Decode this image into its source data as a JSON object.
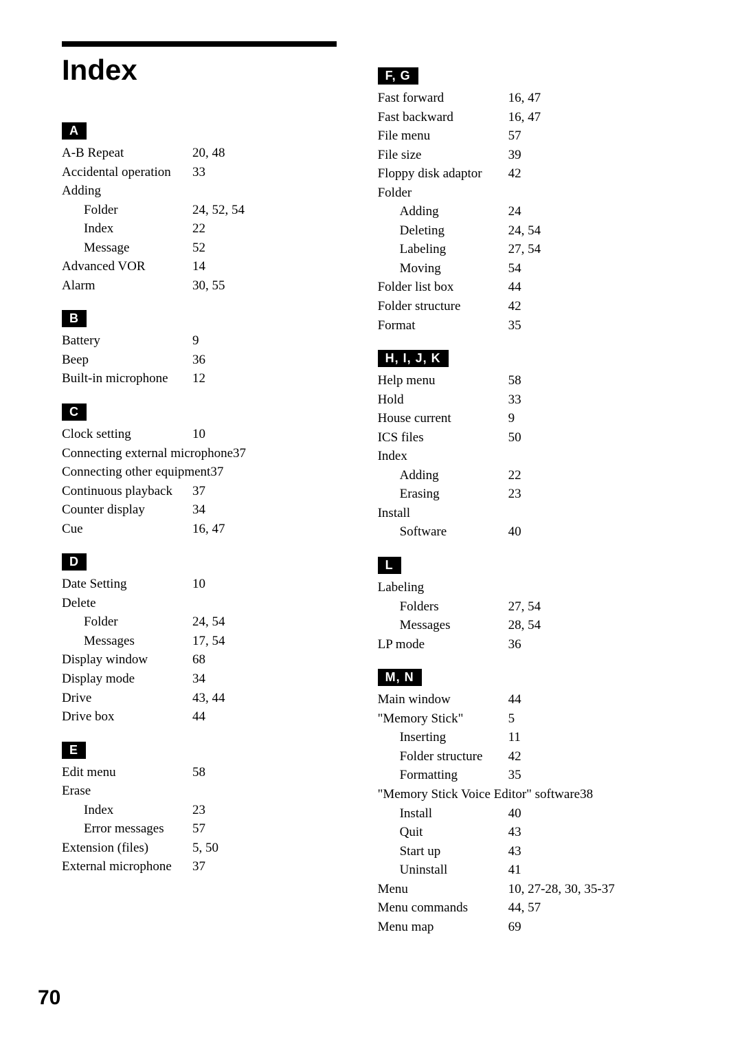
{
  "title": "Index",
  "pageNumber": "70",
  "sections": [
    {
      "letter": "A",
      "column": 0,
      "entries": [
        {
          "term": "A-B Repeat",
          "pages": "20, 48"
        },
        {
          "term": "Accidental operation",
          "pages": "33"
        },
        {
          "term": "Adding",
          "pages": ""
        },
        {
          "term": "Folder",
          "pages": "24, 52, 54",
          "sub": true
        },
        {
          "term": "Index",
          "pages": "22",
          "sub": true
        },
        {
          "term": "Message",
          "pages": "52",
          "sub": true
        },
        {
          "term": "Advanced VOR",
          "pages": "14"
        },
        {
          "term": "Alarm",
          "pages": "30, 55"
        }
      ]
    },
    {
      "letter": "B",
      "column": 0,
      "entries": [
        {
          "term": "Battery",
          "pages": "9"
        },
        {
          "term": "Beep",
          "pages": "36"
        },
        {
          "term": "Built-in microphone",
          "pages": "12"
        }
      ]
    },
    {
      "letter": "C",
      "column": 0,
      "entries": [
        {
          "term": "Clock setting",
          "pages": "10"
        },
        {
          "term": "Connecting external microphone",
          "pages": "37"
        },
        {
          "term": "Connecting other equipment",
          "pages": "37"
        },
        {
          "term": "Continuous playback",
          "pages": "37"
        },
        {
          "term": "Counter display",
          "pages": "34"
        },
        {
          "term": "Cue",
          "pages": "16, 47"
        }
      ]
    },
    {
      "letter": "D",
      "column": 0,
      "entries": [
        {
          "term": "Date Setting",
          "pages": "10"
        },
        {
          "term": "Delete",
          "pages": ""
        },
        {
          "term": "Folder",
          "pages": "24, 54",
          "sub": true
        },
        {
          "term": "Messages",
          "pages": "17, 54",
          "sub": true
        },
        {
          "term": "Display window",
          "pages": "68"
        },
        {
          "term": "Display mode",
          "pages": "34"
        },
        {
          "term": "Drive",
          "pages": "43, 44"
        },
        {
          "term": "Drive box",
          "pages": "44"
        }
      ]
    },
    {
      "letter": "E",
      "column": 0,
      "entries": [
        {
          "term": "Edit menu",
          "pages": "58"
        },
        {
          "term": "Erase",
          "pages": ""
        },
        {
          "term": "Index",
          "pages": "23",
          "sub": true
        },
        {
          "term": "Error messages",
          "pages": "57",
          "sub": true
        },
        {
          "term": "Extension (files)",
          "pages": "5, 50"
        },
        {
          "term": "External microphone",
          "pages": "37"
        }
      ]
    },
    {
      "letter": "F, G",
      "column": 1,
      "entries": [
        {
          "term": "Fast forward",
          "pages": "16, 47"
        },
        {
          "term": "Fast backward",
          "pages": "16, 47"
        },
        {
          "term": "File menu",
          "pages": "57"
        },
        {
          "term": "File size",
          "pages": "39"
        },
        {
          "term": "Floppy disk adaptor",
          "pages": "42"
        },
        {
          "term": "Folder",
          "pages": ""
        },
        {
          "term": "Adding",
          "pages": "24",
          "sub": true
        },
        {
          "term": "Deleting",
          "pages": "24, 54",
          "sub": true
        },
        {
          "term": "Labeling",
          "pages": "27, 54",
          "sub": true
        },
        {
          "term": "Moving",
          "pages": "54",
          "sub": true
        },
        {
          "term": "Folder list box",
          "pages": "44"
        },
        {
          "term": "Folder structure",
          "pages": "42"
        },
        {
          "term": "Format",
          "pages": "35"
        }
      ]
    },
    {
      "letter": "H, I, J, K",
      "column": 1,
      "entries": [
        {
          "term": "Help menu",
          "pages": "58"
        },
        {
          "term": "Hold",
          "pages": "33"
        },
        {
          "term": "House current",
          "pages": "9"
        },
        {
          "term": "ICS files",
          "pages": "50"
        },
        {
          "term": "Index",
          "pages": ""
        },
        {
          "term": "Adding",
          "pages": "22",
          "sub": true
        },
        {
          "term": "Erasing",
          "pages": "23",
          "sub": true
        },
        {
          "term": "Install",
          "pages": ""
        },
        {
          "term": "Software",
          "pages": "40",
          "sub": true
        }
      ]
    },
    {
      "letter": "L",
      "column": 1,
      "entries": [
        {
          "term": "Labeling",
          "pages": ""
        },
        {
          "term": "Folders",
          "pages": "27, 54",
          "sub": true
        },
        {
          "term": "Messages",
          "pages": "28, 54",
          "sub": true
        },
        {
          "term": "LP mode",
          "pages": "36"
        }
      ]
    },
    {
      "letter": "M, N",
      "column": 1,
      "entries": [
        {
          "term": "Main window",
          "pages": "44"
        },
        {
          "term": "\"Memory Stick\"",
          "pages": "5"
        },
        {
          "term": "Inserting",
          "pages": "11",
          "sub": true
        },
        {
          "term": "Folder structure",
          "pages": "42",
          "sub": true
        },
        {
          "term": "Formatting",
          "pages": "35",
          "sub": true
        },
        {
          "term": "\"Memory Stick Voice Editor\" software",
          "pages": "38"
        },
        {
          "term": "Install",
          "pages": "40",
          "sub": true
        },
        {
          "term": "Quit",
          "pages": "43",
          "sub": true
        },
        {
          "term": "Start up",
          "pages": "43",
          "sub": true
        },
        {
          "term": "Uninstall",
          "pages": "41",
          "sub": true
        },
        {
          "term": "Menu",
          "pages": "10, 27-28, 30, 35-37"
        },
        {
          "term": "Menu commands",
          "pages": "44, 57"
        },
        {
          "term": "Menu map",
          "pages": "69"
        }
      ]
    }
  ]
}
